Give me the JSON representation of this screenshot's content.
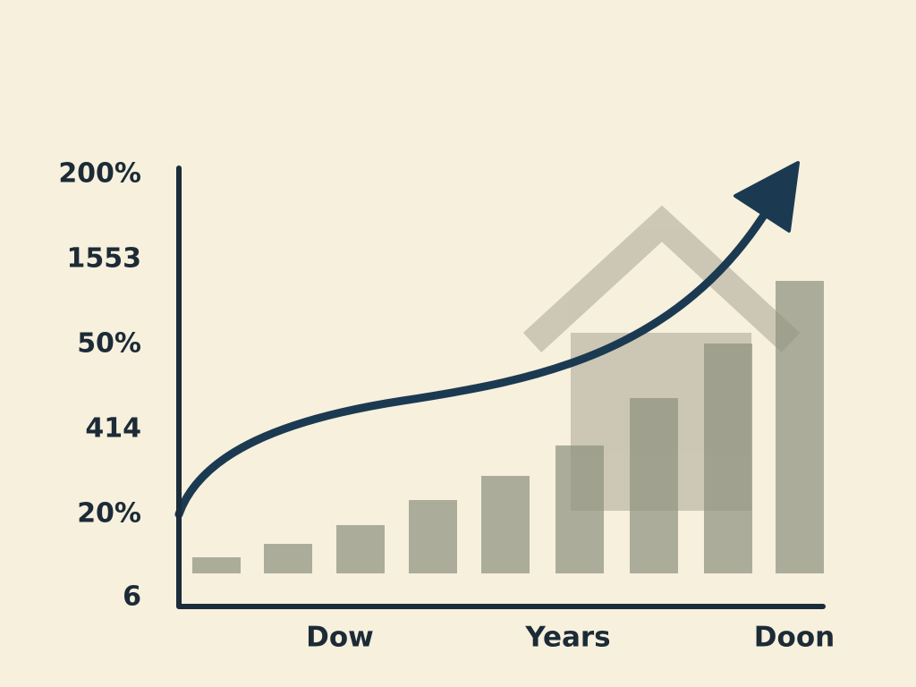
{
  "y_axis_labels": [
    "200%",
    "1553",
    "50%",
    "414",
    "20%",
    "6"
  ],
  "x_axis_labels": [
    "Dow",
    "Years",
    "Doon"
  ]
}
